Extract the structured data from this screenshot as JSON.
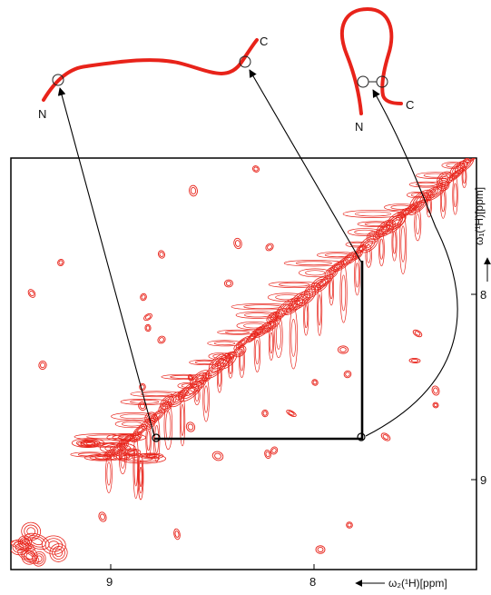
{
  "colors": {
    "contour": "#e8231a",
    "frame": "#000000",
    "arrow": "#000000",
    "text": "#111111"
  },
  "chain_linear": {
    "n_label": "N",
    "c_label": "C"
  },
  "chain_hairpin": {
    "n_label": "N",
    "c_label": "C"
  },
  "axes": {
    "x_ticks": [
      "9",
      "8"
    ],
    "y_ticks": [
      "8",
      "9"
    ],
    "x_label": "ω₂(¹H)[ppm]",
    "y_label": "ω₁(¹H)[ppm]"
  }
}
